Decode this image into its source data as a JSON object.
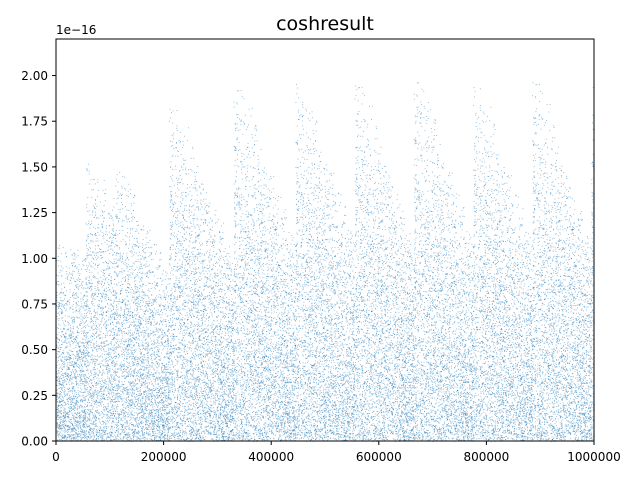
{
  "chart_data": {
    "type": "scatter",
    "title": "coshresult",
    "xlabel": "",
    "ylabel": "",
    "y_offset_label": "1e−16",
    "xlim": [
      0,
      1000000
    ],
    "ylim": [
      0,
      2.2e-16
    ],
    "x_ticks": [
      0,
      200000,
      400000,
      600000,
      800000,
      1000000
    ],
    "x_tick_labels": [
      "0",
      "200000",
      "400000",
      "600000",
      "800000",
      "1000000"
    ],
    "y_ticks": [
      0,
      2.5e-17,
      5e-17,
      7.5e-17,
      1e-16,
      1.25e-16,
      1.5e-16,
      1.75e-16,
      2e-16
    ],
    "y_tick_labels": [
      "0.00",
      "0.25",
      "0.50",
      "0.75",
      "1.00",
      "1.25",
      "1.50",
      "1.75",
      "2.00"
    ],
    "grid": false,
    "marker_color": "#1f77b4",
    "series": [
      {
        "segments": [
          {
            "x_start": 0,
            "x_end": 55000,
            "y_peak_start": 1.11e-16,
            "y_peak_end": 1.05e-16
          },
          {
            "x_start": 55000,
            "x_end": 110000,
            "y_peak_start": 1.56e-16,
            "y_peak_end": 1.4e-16
          },
          {
            "x_start": 110000,
            "x_end": 210000,
            "y_peak_start": 1.62e-16,
            "y_peak_end": 9.3e-17
          },
          {
            "x_start": 210000,
            "x_end": 330000,
            "y_peak_start": 2e-16,
            "y_peak_end": 1.05e-16
          },
          {
            "x_start": 330000,
            "x_end": 445000,
            "y_peak_start": 2.12e-16,
            "y_peak_end": 1.12e-16
          },
          {
            "x_start": 445000,
            "x_end": 555000,
            "y_peak_start": 2.15e-16,
            "y_peak_end": 1.13e-16
          },
          {
            "x_start": 555000,
            "x_end": 665000,
            "y_peak_start": 2.14e-16,
            "y_peak_end": 1.12e-16
          },
          {
            "x_start": 665000,
            "x_end": 775000,
            "y_peak_start": 2.17e-16,
            "y_peak_end": 1.12e-16
          },
          {
            "x_start": 775000,
            "x_end": 885000,
            "y_peak_start": 2.13e-16,
            "y_peak_end": 1.12e-16
          },
          {
            "x_start": 885000,
            "x_end": 995000,
            "y_peak_start": 2.16e-16,
            "y_peak_end": 1.1e-16
          },
          {
            "x_start": 995000,
            "x_end": 1000000,
            "y_peak_start": 2.1e-16,
            "y_peak_end": 2.05e-16
          }
        ]
      }
    ]
  }
}
